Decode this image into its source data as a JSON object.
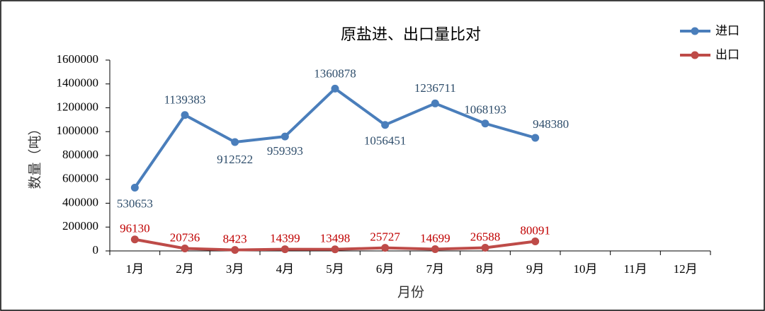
{
  "chart_data": {
    "type": "line",
    "title": "原盐进、出口量比对",
    "x_label": "月份",
    "y_label": "数量（吨）",
    "categories": [
      "1月",
      "2月",
      "3月",
      "4月",
      "5月",
      "6月",
      "7月",
      "8月",
      "9月",
      "10月",
      "11月",
      "12月"
    ],
    "series": [
      {
        "name": "进口",
        "color": "#4a7ebb",
        "label_color": "#2e4d6b",
        "values": [
          530653,
          1139383,
          912522,
          959393,
          1360878,
          1056451,
          1236711,
          1068193,
          948380,
          null,
          null,
          null
        ]
      },
      {
        "name": "出口",
        "color": "#be4b48",
        "label_color": "#c00000",
        "values": [
          96130,
          20736,
          8423,
          14399,
          13498,
          25727,
          14699,
          26588,
          80091,
          null,
          null,
          null
        ]
      }
    ],
    "ylim": [
      0,
      1600000
    ],
    "yticks": [
      0,
      200000,
      400000,
      600000,
      800000,
      1000000,
      1200000,
      1400000,
      1600000
    ],
    "legend": "top-right"
  }
}
